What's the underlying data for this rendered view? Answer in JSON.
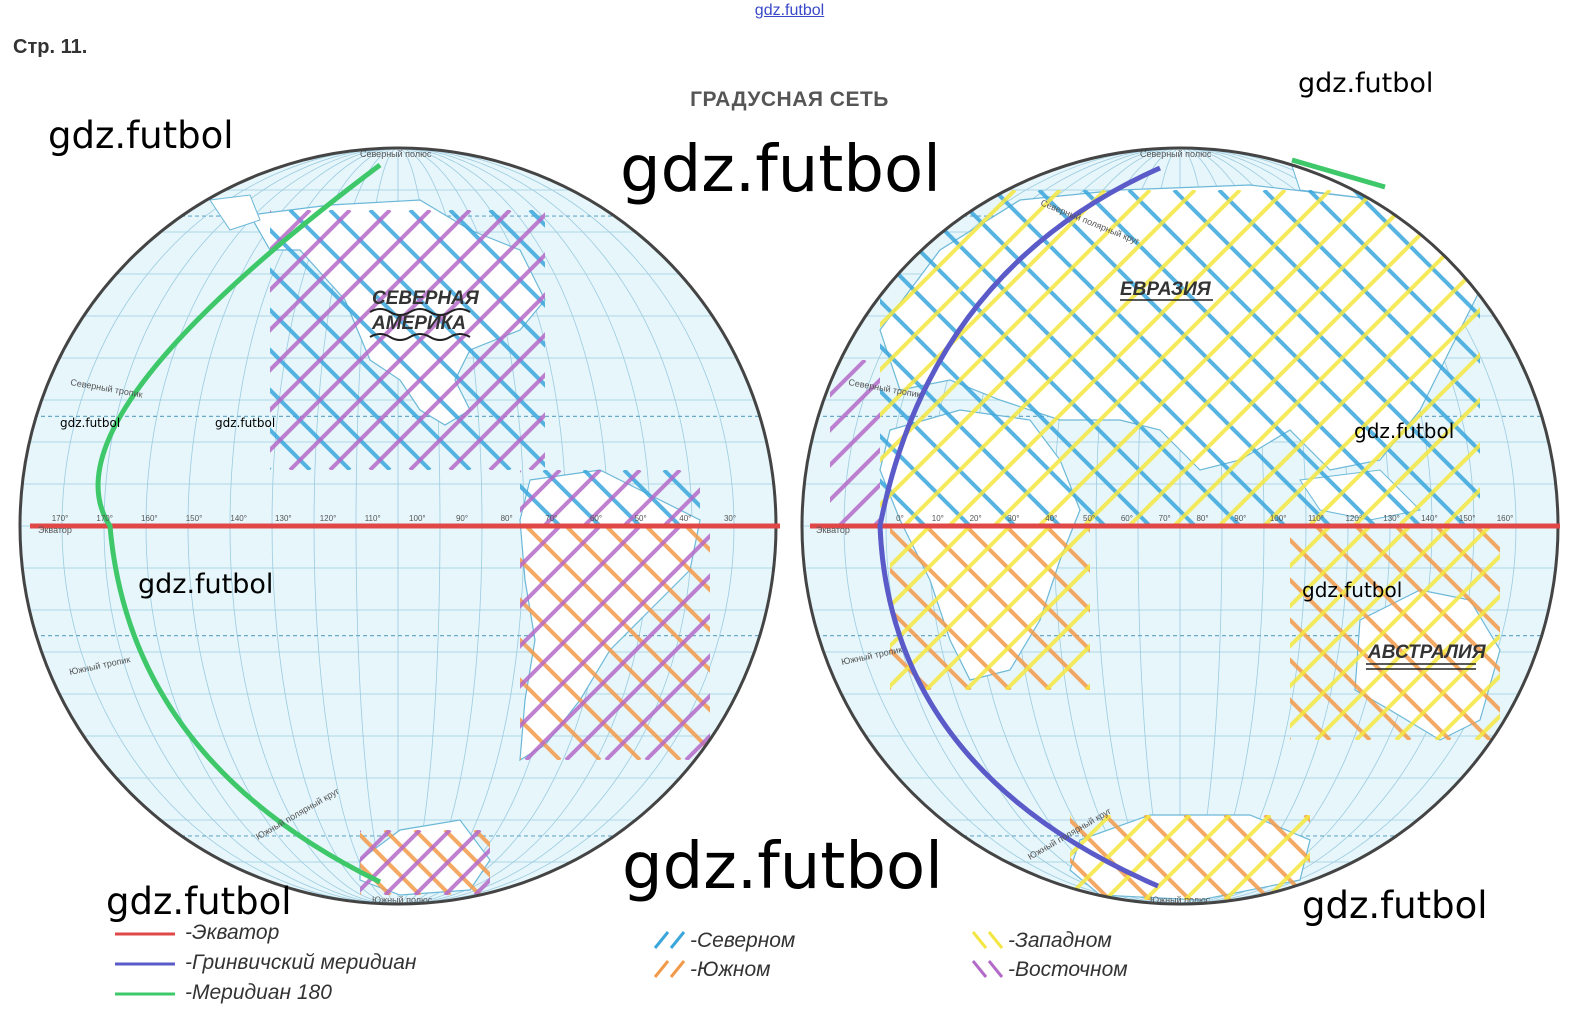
{
  "header": {
    "top_link": "gdz.futbol",
    "page_ref": "Стр. 11.",
    "title": "ГРАДУСНАЯ СЕТЬ"
  },
  "watermark": "gdz.futbol",
  "maps": {
    "pole_north": "Северный полюс",
    "pole_south": "Южный полюс",
    "equator_label": "Экватор",
    "tropic_north": "Северный тропик",
    "tropic_south": "Южный тропик",
    "polar_north": "Северный полярный круг",
    "polar_south": "Южный полярный круг",
    "west_hemisphere": {
      "continent_label_line1": "СЕВЕРНАЯ",
      "continent_label_line2": "АМЕРИКА",
      "longitudes": [
        "170°",
        "170°",
        "160°",
        "150°",
        "140°",
        "130°",
        "120°",
        "110°",
        "100°",
        "90°",
        "80°",
        "70°",
        "60°",
        "50°",
        "40°",
        "30°"
      ]
    },
    "east_hemisphere": {
      "continent_label_1": "ЕВРАЗИЯ",
      "continent_label_2": "АВСТРАЛИЯ",
      "longitudes": [
        "0°",
        "10°",
        "20°",
        "30°",
        "40°",
        "50°",
        "60°",
        "70°",
        "80°",
        "90°",
        "100°",
        "110°",
        "120°",
        "130°",
        "140°",
        "150°",
        "160°"
      ]
    }
  },
  "legend": {
    "lines": [
      {
        "label": "-Экватор",
        "color": "#e04848"
      },
      {
        "label": "-Гринвичский меридиан",
        "color": "#5a5ac8"
      },
      {
        "label": "-Меридиан 180",
        "color": "#3ec86a"
      }
    ],
    "hatches": [
      {
        "label": "-Северном",
        "color": "#3aa6dc"
      },
      {
        "label": "-Южном",
        "color": "#f29a4a"
      },
      {
        "label": "-Западном",
        "color": "#f4e640"
      },
      {
        "label": "-Восточном",
        "color": "#b46ac8"
      }
    ]
  }
}
